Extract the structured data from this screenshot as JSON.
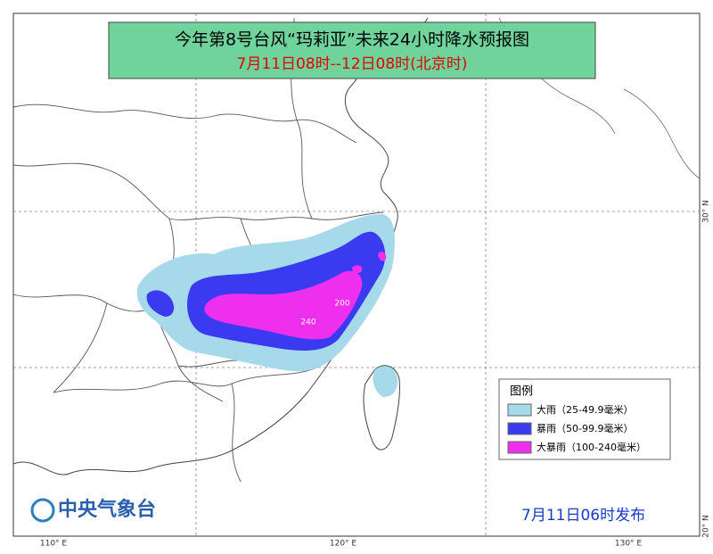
{
  "header": {
    "title": "今年第8号台风“玛莉亚”未来24小时降水预报图",
    "subtitle": "7月11日08时--12日08时(北京时)"
  },
  "legend": {
    "title": "图例",
    "items": [
      "大雨（25-49.9毫米）",
      "暴雨（50-99.9毫米）",
      "大暴雨（100-240毫米）"
    ]
  },
  "map_labels": [
    "200",
    "240"
  ],
  "axes": {
    "longitudes": [
      "110° E",
      "120° E",
      "130° E"
    ],
    "latitudes": [
      "30° N",
      "20° N"
    ]
  },
  "footer": {
    "agency": "中央气象台",
    "issued": "7月11日06时发布"
  }
}
